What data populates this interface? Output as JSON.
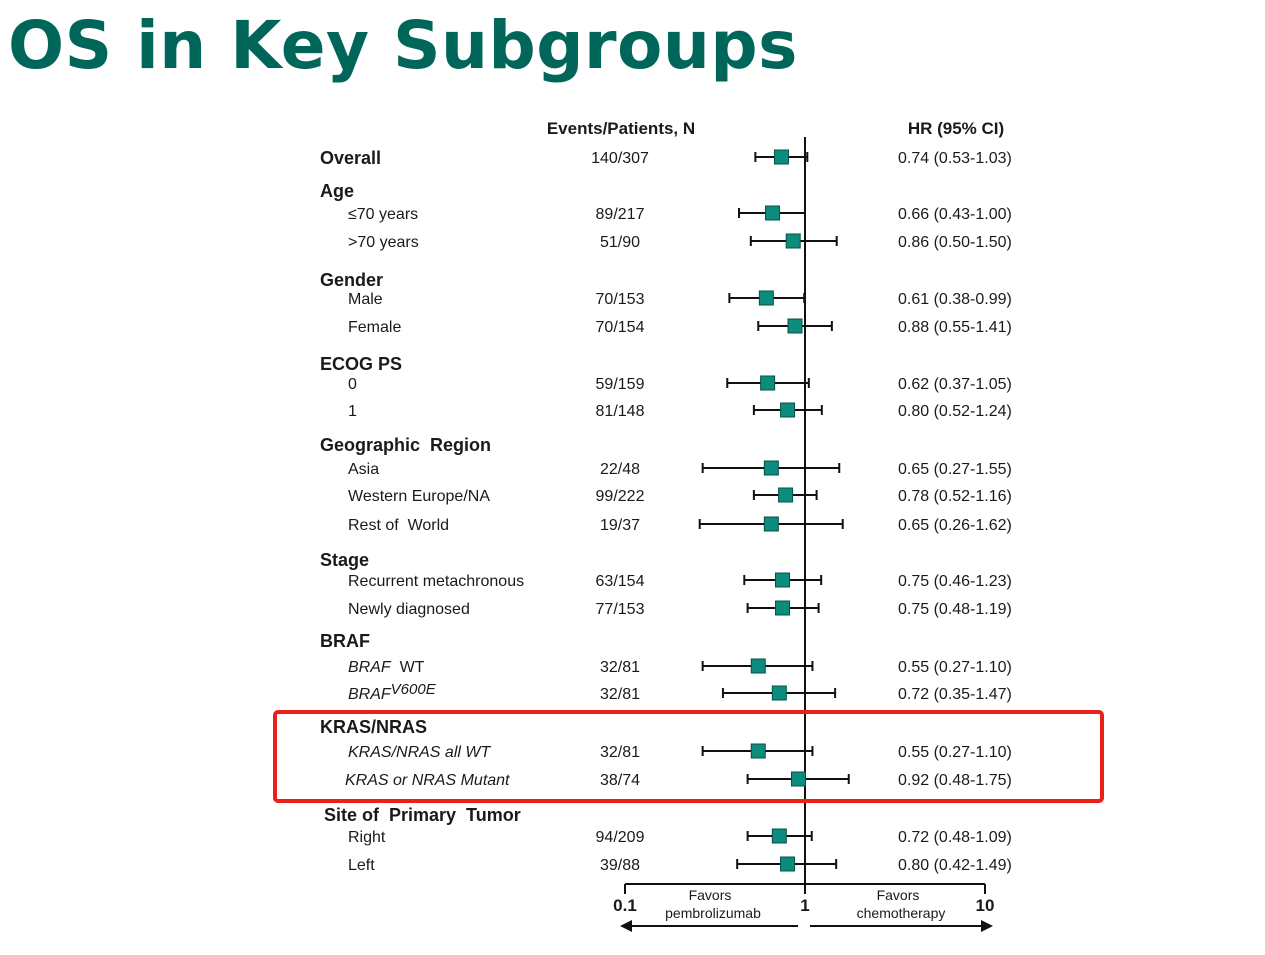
{
  "title": "OS in Key Subgroups",
  "colors": {
    "title": "#00665a",
    "marker": "#0c8c7c",
    "marker_edge": "#06524a",
    "line": "#111111",
    "highlight": "#e8221b"
  },
  "chart_data": {
    "type": "forest",
    "scale": "log",
    "xlim": [
      0.1,
      10
    ],
    "reference": 1,
    "x_ticks": [
      "0.1",
      "1",
      "10"
    ],
    "columns": {
      "events": "Events/Patients, N",
      "hr": "HR (95%  CI)"
    },
    "favors": {
      "left": [
        "Favors",
        "pembrolizumab"
      ],
      "right": [
        "Favors",
        "chemotherapy"
      ]
    },
    "highlighted_group": "KRAS/NRAS",
    "groups": [
      {
        "label": "Overall",
        "events": "140/307",
        "hr_text": "0.74 (0.53-1.03)",
        "hr": 0.74,
        "lo": 0.53,
        "hi": 1.03,
        "rows": []
      },
      {
        "label": "Age",
        "rows": [
          {
            "label": "≤70 years",
            "events": "89/217",
            "hr_text": "0.66 (0.43-1.00)",
            "hr": 0.66,
            "lo": 0.43,
            "hi": 1.0
          },
          {
            "label": ">70 years",
            "events": "51/90",
            "hr_text": "0.86 (0.50-1.50)",
            "hr": 0.86,
            "lo": 0.5,
            "hi": 1.5
          }
        ]
      },
      {
        "label": "Gender",
        "rows": [
          {
            "label": "Male",
            "events": "70/153",
            "hr_text": "0.61 (0.38-0.99)",
            "hr": 0.61,
            "lo": 0.38,
            "hi": 0.99
          },
          {
            "label": "Female",
            "events": "70/154",
            "hr_text": "0.88 (0.55-1.41)",
            "hr": 0.88,
            "lo": 0.55,
            "hi": 1.41
          }
        ]
      },
      {
        "label": "ECOG PS",
        "rows": [
          {
            "label": "0",
            "events": "59/159",
            "hr_text": "0.62 (0.37-1.05)",
            "hr": 0.62,
            "lo": 0.37,
            "hi": 1.05
          },
          {
            "label": "1",
            "events": "81/148",
            "hr_text": "0.80 (0.52-1.24)",
            "hr": 0.8,
            "lo": 0.52,
            "hi": 1.24
          }
        ]
      },
      {
        "label": "Geographic  Region",
        "rows": [
          {
            "label": "Asia",
            "events": "22/48",
            "hr_text": "0.65 (0.27-1.55)",
            "hr": 0.65,
            "lo": 0.27,
            "hi": 1.55
          },
          {
            "label": "Western Europe/NA",
            "events": "99/222",
            "hr_text": "0.78 (0.52-1.16)",
            "hr": 0.78,
            "lo": 0.52,
            "hi": 1.16
          },
          {
            "label": "Rest of  World",
            "events": "19/37",
            "hr_text": "0.65 (0.26-1.62)",
            "hr": 0.65,
            "lo": 0.26,
            "hi": 1.62
          }
        ]
      },
      {
        "label": "Stage",
        "rows": [
          {
            "label": "Recurrent metachronous",
            "events": "63/154",
            "hr_text": "0.75 (0.46-1.23)",
            "hr": 0.75,
            "lo": 0.46,
            "hi": 1.23
          },
          {
            "label": "Newly diagnosed",
            "events": "77/153",
            "hr_text": "0.75 (0.48-1.19)",
            "hr": 0.75,
            "lo": 0.48,
            "hi": 1.19
          }
        ]
      },
      {
        "label": "BRAF",
        "rows": [
          {
            "label": "BRAF",
            "suffix": "  WT",
            "italic": true,
            "events": "32/81",
            "hr_text": "0.55 (0.27-1.10)",
            "hr": 0.55,
            "lo": 0.27,
            "hi": 1.1
          },
          {
            "label": "BRAF",
            "sup": "V600E",
            "italic": true,
            "events": "32/81",
            "hr_text": "0.72 (0.35-1.47)",
            "hr": 0.72,
            "lo": 0.35,
            "hi": 1.47
          }
        ]
      },
      {
        "label": "KRAS/NRAS",
        "rows": [
          {
            "label": "KRAS/NRAS all WT",
            "italic": true,
            "events": "32/81",
            "hr_text": "0.55 (0.27-1.10)",
            "hr": 0.55,
            "lo": 0.27,
            "hi": 1.1
          },
          {
            "label": "KRAS or NRAS Mutant",
            "italic": true,
            "events": "38/74",
            "hr_text": "0.92 (0.48-1.75)",
            "hr": 0.92,
            "lo": 0.48,
            "hi": 1.75
          }
        ]
      },
      {
        "label": "Site of  Primary  Tumor",
        "rows": [
          {
            "label": "Right",
            "events": "94/209",
            "hr_text": "0.72 (0.48-1.09)",
            "hr": 0.72,
            "lo": 0.48,
            "hi": 1.09
          },
          {
            "label": "Left",
            "events": "39/88",
            "hr_text": "0.80 (0.42-1.49)",
            "hr": 0.8,
            "lo": 0.42,
            "hi": 1.49
          }
        ]
      }
    ]
  }
}
